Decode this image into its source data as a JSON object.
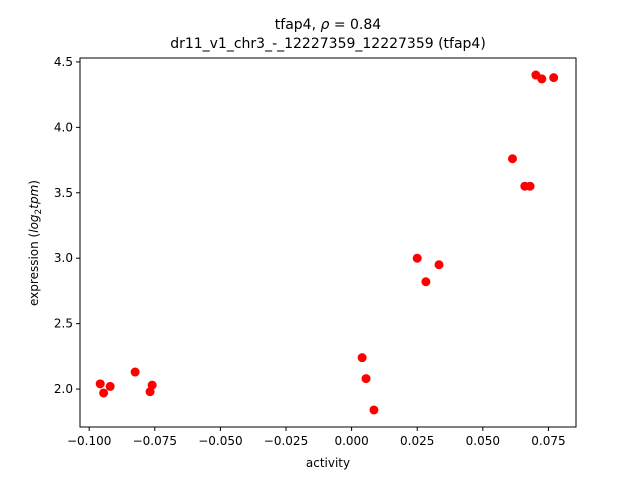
{
  "chart_data": {
    "type": "scatter",
    "title_line1": "tfap4, ",
    "title_rho_symbol": "ρ",
    "title_rho_value": " = 0.84",
    "title_line2": "dr11_v1_chr3_-_12227359_12227359 (tfap4)",
    "xlabel": "activity",
    "ylabel_prefix": "expression (",
    "ylabel_log": "log",
    "ylabel_sub": "2",
    "ylabel_tpm": "tpm",
    "ylabel_suffix": ")",
    "xlim": [
      -0.1035,
      0.0855
    ],
    "ylim": [
      1.71,
      4.53
    ],
    "xticks": [
      -0.1,
      -0.075,
      -0.05,
      -0.025,
      0.0,
      0.025,
      0.05,
      0.075
    ],
    "xtick_labels": [
      "−0.100",
      "−0.075",
      "−0.050",
      "−0.025",
      "0.000",
      "0.025",
      "0.050",
      "0.075"
    ],
    "yticks": [
      2.0,
      2.5,
      3.0,
      3.5,
      4.0,
      4.5
    ],
    "ytick_labels": [
      "2.0",
      "2.5",
      "3.0",
      "3.5",
      "4.0",
      "4.5"
    ],
    "grid": false,
    "marker_color": "#ff0000",
    "points": [
      {
        "x": -0.0958,
        "y": 2.04
      },
      {
        "x": -0.0945,
        "y": 1.97
      },
      {
        "x": -0.092,
        "y": 2.02
      },
      {
        "x": -0.0825,
        "y": 2.13
      },
      {
        "x": -0.0768,
        "y": 1.98
      },
      {
        "x": -0.076,
        "y": 2.03
      },
      {
        "x": 0.004,
        "y": 2.24
      },
      {
        "x": 0.0055,
        "y": 2.08
      },
      {
        "x": 0.0085,
        "y": 1.84
      },
      {
        "x": 0.025,
        "y": 3.0
      },
      {
        "x": 0.0283,
        "y": 2.82
      },
      {
        "x": 0.0333,
        "y": 2.95
      },
      {
        "x": 0.0613,
        "y": 3.76
      },
      {
        "x": 0.066,
        "y": 3.55
      },
      {
        "x": 0.068,
        "y": 3.55
      },
      {
        "x": 0.0702,
        "y": 4.4
      },
      {
        "x": 0.0725,
        "y": 4.37
      },
      {
        "x": 0.077,
        "y": 4.38
      }
    ]
  }
}
